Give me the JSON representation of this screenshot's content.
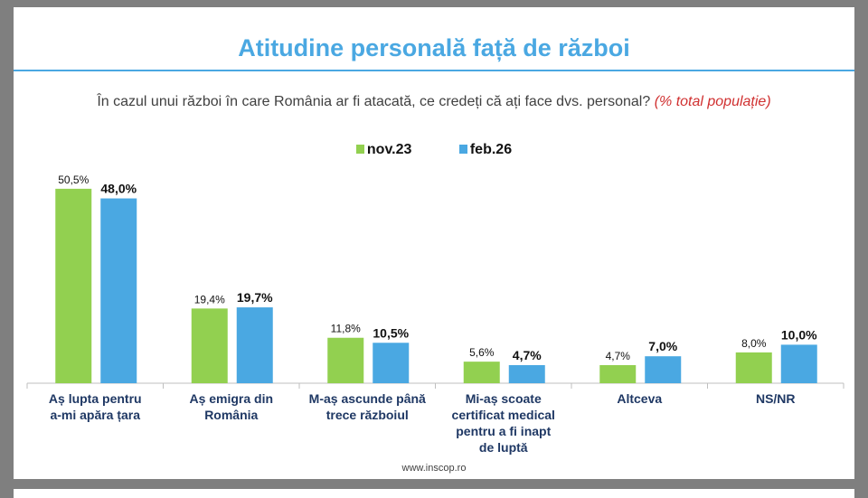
{
  "title": "Atitudine personală față de război",
  "subtitle": "În cazul unui război în care România ar fi atacată, ce credeți că ați face dvs. personal?",
  "subtitle_note": "(% total populație)",
  "footer": "www.inscop.ro",
  "chart_data": {
    "type": "bar",
    "categories": [
      "Aș lupta pentru a-mi apăra țara",
      "Aș emigra din România",
      "M-aș ascunde până trece războiul",
      "Mi-aș scoate certificat medical pentru a fi inapt de luptă",
      "Altceva",
      "NS/NR"
    ],
    "series": [
      {
        "name": "nov.23",
        "color": "#92d050",
        "values": [
          50.5,
          19.4,
          11.8,
          5.6,
          4.7,
          8.0
        ],
        "labels": [
          "50,5%",
          "19,4%",
          "11,8%",
          "5,6%",
          "4,7%",
          "8,0%"
        ]
      },
      {
        "name": "feb.26",
        "color": "#4aa8e2",
        "values": [
          48.0,
          19.7,
          10.5,
          4.7,
          7.0,
          10.0
        ],
        "labels": [
          "48,0%",
          "19,7%",
          "10,5%",
          "4,7%",
          "7,0%",
          "10,0%"
        ]
      }
    ],
    "ylim": [
      0,
      55
    ],
    "legend": "top-center"
  }
}
